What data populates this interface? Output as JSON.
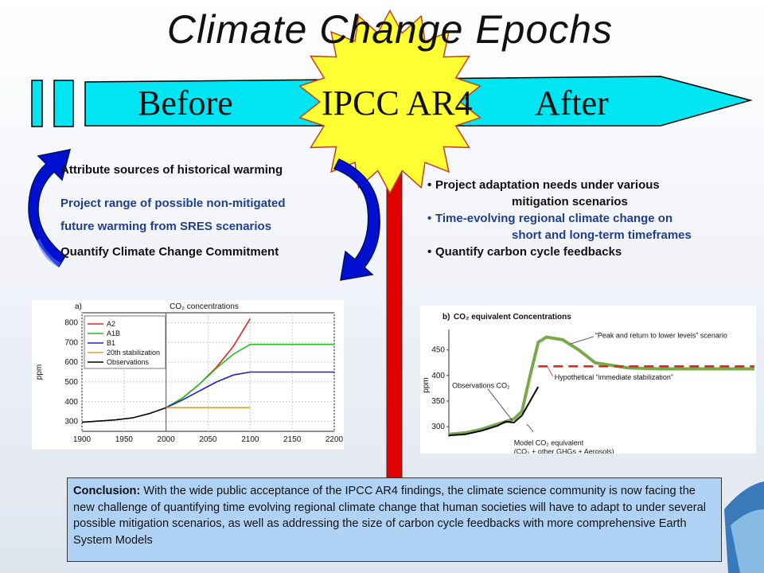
{
  "title": "Climate Change Epochs",
  "arrow": {
    "before": "Before",
    "center": "IPCC AR4",
    "after": "After"
  },
  "left_items": [
    {
      "text": "Attribute sources of historical warming",
      "color": "#111111"
    },
    {
      "text": "Project range of possible non-mitigated",
      "color": "#1f3f8f"
    },
    {
      "text": "future warming from SRES scenarios",
      "color": "#1f3f8f"
    },
    {
      "text": "Quantify Climate Change Commitment",
      "color": "#111111"
    }
  ],
  "right_items": [
    {
      "bullet": "•",
      "line1": "Project adaptation needs under various",
      "line2": "mitigation scenarios",
      "color": "#111111"
    },
    {
      "bullet": "•",
      "line1": "Time-evolving regional climate change on",
      "line2": "short and long-term timeframes",
      "color": "#1f3f8f"
    },
    {
      "bullet": "•",
      "line1": "Quantify carbon cycle feedbacks",
      "line2": "",
      "color": "#111111"
    }
  ],
  "chart_data": [
    {
      "type": "line",
      "title": "CO₂ concentrations",
      "panel_label": "a)",
      "ylabel": "ppm",
      "xlim": [
        1900,
        2200
      ],
      "ylim": [
        250,
        850
      ],
      "xticks": [
        1900,
        1950,
        2000,
        2050,
        2100,
        2150,
        2200
      ],
      "yticks": [
        300,
        400,
        500,
        600,
        700,
        800
      ],
      "legend_position": "top-left",
      "series": [
        {
          "name": "A2",
          "color": "#e02020",
          "x": [
            2000,
            2020,
            2040,
            2060,
            2080,
            2100
          ],
          "y": [
            370,
            420,
            490,
            575,
            680,
            820
          ]
        },
        {
          "name": "A1B",
          "color": "#20c020",
          "x": [
            2000,
            2020,
            2040,
            2060,
            2080,
            2100,
            2200
          ],
          "y": [
            370,
            420,
            490,
            570,
            640,
            690,
            690
          ]
        },
        {
          "name": "B1",
          "color": "#2020c0",
          "x": [
            2000,
            2020,
            2040,
            2060,
            2080,
            2100,
            2200
          ],
          "y": [
            370,
            410,
            455,
            500,
            535,
            550,
            550
          ]
        },
        {
          "name": "20th stabilization",
          "color": "#e0a040",
          "x": [
            2000,
            2100
          ],
          "y": [
            370,
            370
          ]
        },
        {
          "name": "Observations",
          "color": "#000000",
          "x": [
            1900,
            1920,
            1940,
            1960,
            1980,
            2000
          ],
          "y": [
            296,
            302,
            308,
            318,
            340,
            370
          ]
        }
      ]
    },
    {
      "type": "line",
      "title": "CO₂ equivalent Concentrations",
      "panel_label": "b)",
      "ylabel": "ppm",
      "ylim": [
        280,
        490
      ],
      "yticks": [
        300,
        350,
        400,
        450
      ],
      "annotations": [
        "“Peak and return to lower levels” scenario",
        "Hypothetical “immediate stabilization”",
        "Observations CO₂",
        "Model CO₂ equivalent",
        "(CO₂ + other GHGs + Aerosols)"
      ],
      "series": [
        {
          "name": "Peak and return to lower levels",
          "color": "#7aa84c",
          "x": [
            0,
            20,
            40,
            60,
            80,
            90,
            100,
            110,
            120,
            140,
            160,
            180,
            220,
            260,
            300,
            340,
            376
          ],
          "y": [
            285,
            288,
            295,
            305,
            315,
            330,
            400,
            465,
            475,
            470,
            450,
            425,
            415,
            413,
            413,
            413,
            413
          ]
        },
        {
          "name": "Hypothetical immediate stabilization",
          "color": "#d03020",
          "x": [
            110,
            376
          ],
          "y": [
            418,
            418
          ]
        },
        {
          "name": "Observations CO₂",
          "color": "#000000",
          "x": [
            0,
            20,
            40,
            60,
            70,
            80,
            90,
            100,
            110
          ],
          "y": [
            283,
            285,
            292,
            302,
            310,
            308,
            322,
            350,
            378
          ]
        }
      ]
    }
  ],
  "conclusion": {
    "label": "Conclusion:",
    "text": " With the wide public acceptance of the IPCC AR4 findings, the climate science community is now facing the new challenge of quantifying time evolving regional climate change that human societies will have to adapt to under several possible mitigation scenarios, as well as addressing the size of carbon cycle feedbacks with more comprehensive Earth System Models"
  },
  "colors": {
    "arrow_fill": "#00e5f2",
    "star_fill": "#ffff33",
    "divider": "#e00000",
    "curved_arrow": "#0010d0",
    "conclusion_bg": "#b0d3f5"
  }
}
